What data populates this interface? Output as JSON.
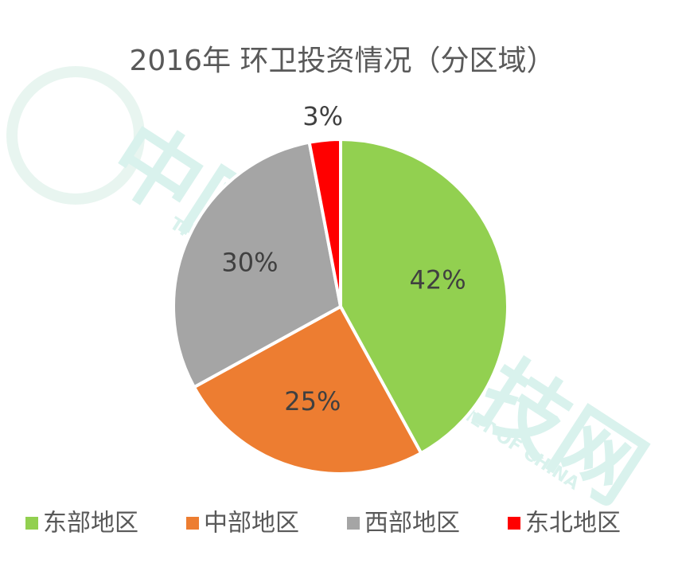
{
  "chart_data": {
    "type": "pie",
    "title": "2016年 环卫投资情况（分区域）",
    "categories": [
      "东部地区",
      "中部地区",
      "西部地区",
      "东北地区"
    ],
    "values": [
      42,
      25,
      30,
      3
    ],
    "value_labels": [
      "42%",
      "25%",
      "30%",
      "3%"
    ],
    "colors": [
      "#92d050",
      "#ed7d31",
      "#a5a5a5",
      "#ff0000"
    ],
    "legend": "bottom"
  },
  "watermark": {
    "cn": "中国环卫科技网",
    "en": "THE ENVIRONMENTAL SANITATION NET OF CHINA"
  }
}
